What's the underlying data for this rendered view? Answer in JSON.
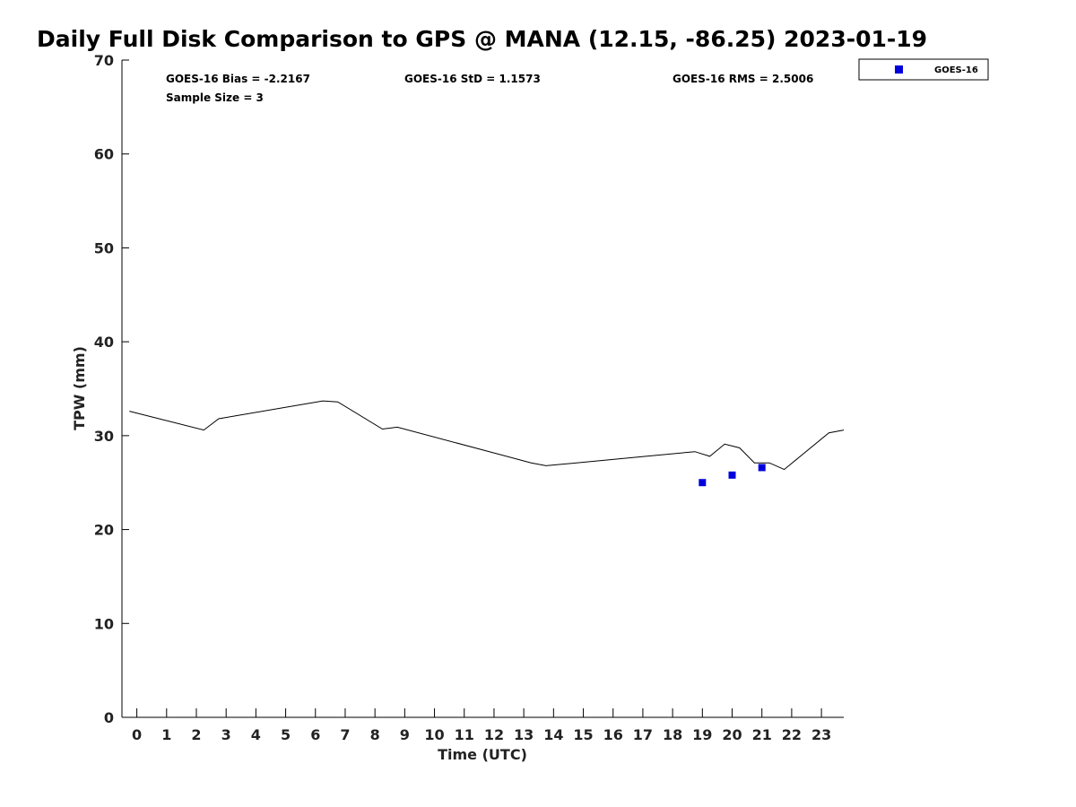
{
  "chart_data": {
    "type": "scatter",
    "title": "Daily Full Disk Comparison to GPS @ MANA (12.15, -86.25) 2023-01-19",
    "xlabel": "Time (UTC)",
    "ylabel": "TPW (mm)",
    "xlim": [
      -0.5,
      23.75
    ],
    "ylim": [
      0,
      70
    ],
    "x_ticks": [
      0,
      1,
      2,
      3,
      4,
      5,
      6,
      7,
      8,
      9,
      10,
      11,
      12,
      13,
      14,
      15,
      16,
      17,
      18,
      19,
      20,
      21,
      22,
      23
    ],
    "y_ticks": [
      0,
      10,
      20,
      30,
      40,
      50,
      60,
      70
    ],
    "grid": false,
    "legend_position": "top-right",
    "stats": [
      "GOES-16 Bias = -2.2167",
      "GOES-16 StD = 1.1573",
      "GOES-16 RMS = 2.5006",
      "Sample Size = 3"
    ],
    "series": [
      {
        "kind": "line",
        "color": "#000000",
        "x": [
          -0.25,
          2.25,
          2.75,
          6.25,
          6.75,
          8.25,
          8.75,
          13.25,
          13.75,
          18.75,
          19.25,
          19.75,
          20.25,
          20.75,
          21.25,
          21.75,
          23.25,
          23.75
        ],
        "y": [
          32.6,
          30.6,
          31.8,
          33.7,
          33.6,
          30.7,
          30.9,
          27.1,
          26.8,
          28.3,
          27.8,
          29.1,
          28.7,
          27.1,
          27.1,
          26.4,
          30.3,
          30.6
        ]
      },
      {
        "kind": "scatter",
        "name": "GOES-16",
        "color": "#0000dd",
        "x": [
          19,
          20,
          21
        ],
        "y": [
          25.0,
          25.8,
          26.6
        ]
      }
    ]
  }
}
